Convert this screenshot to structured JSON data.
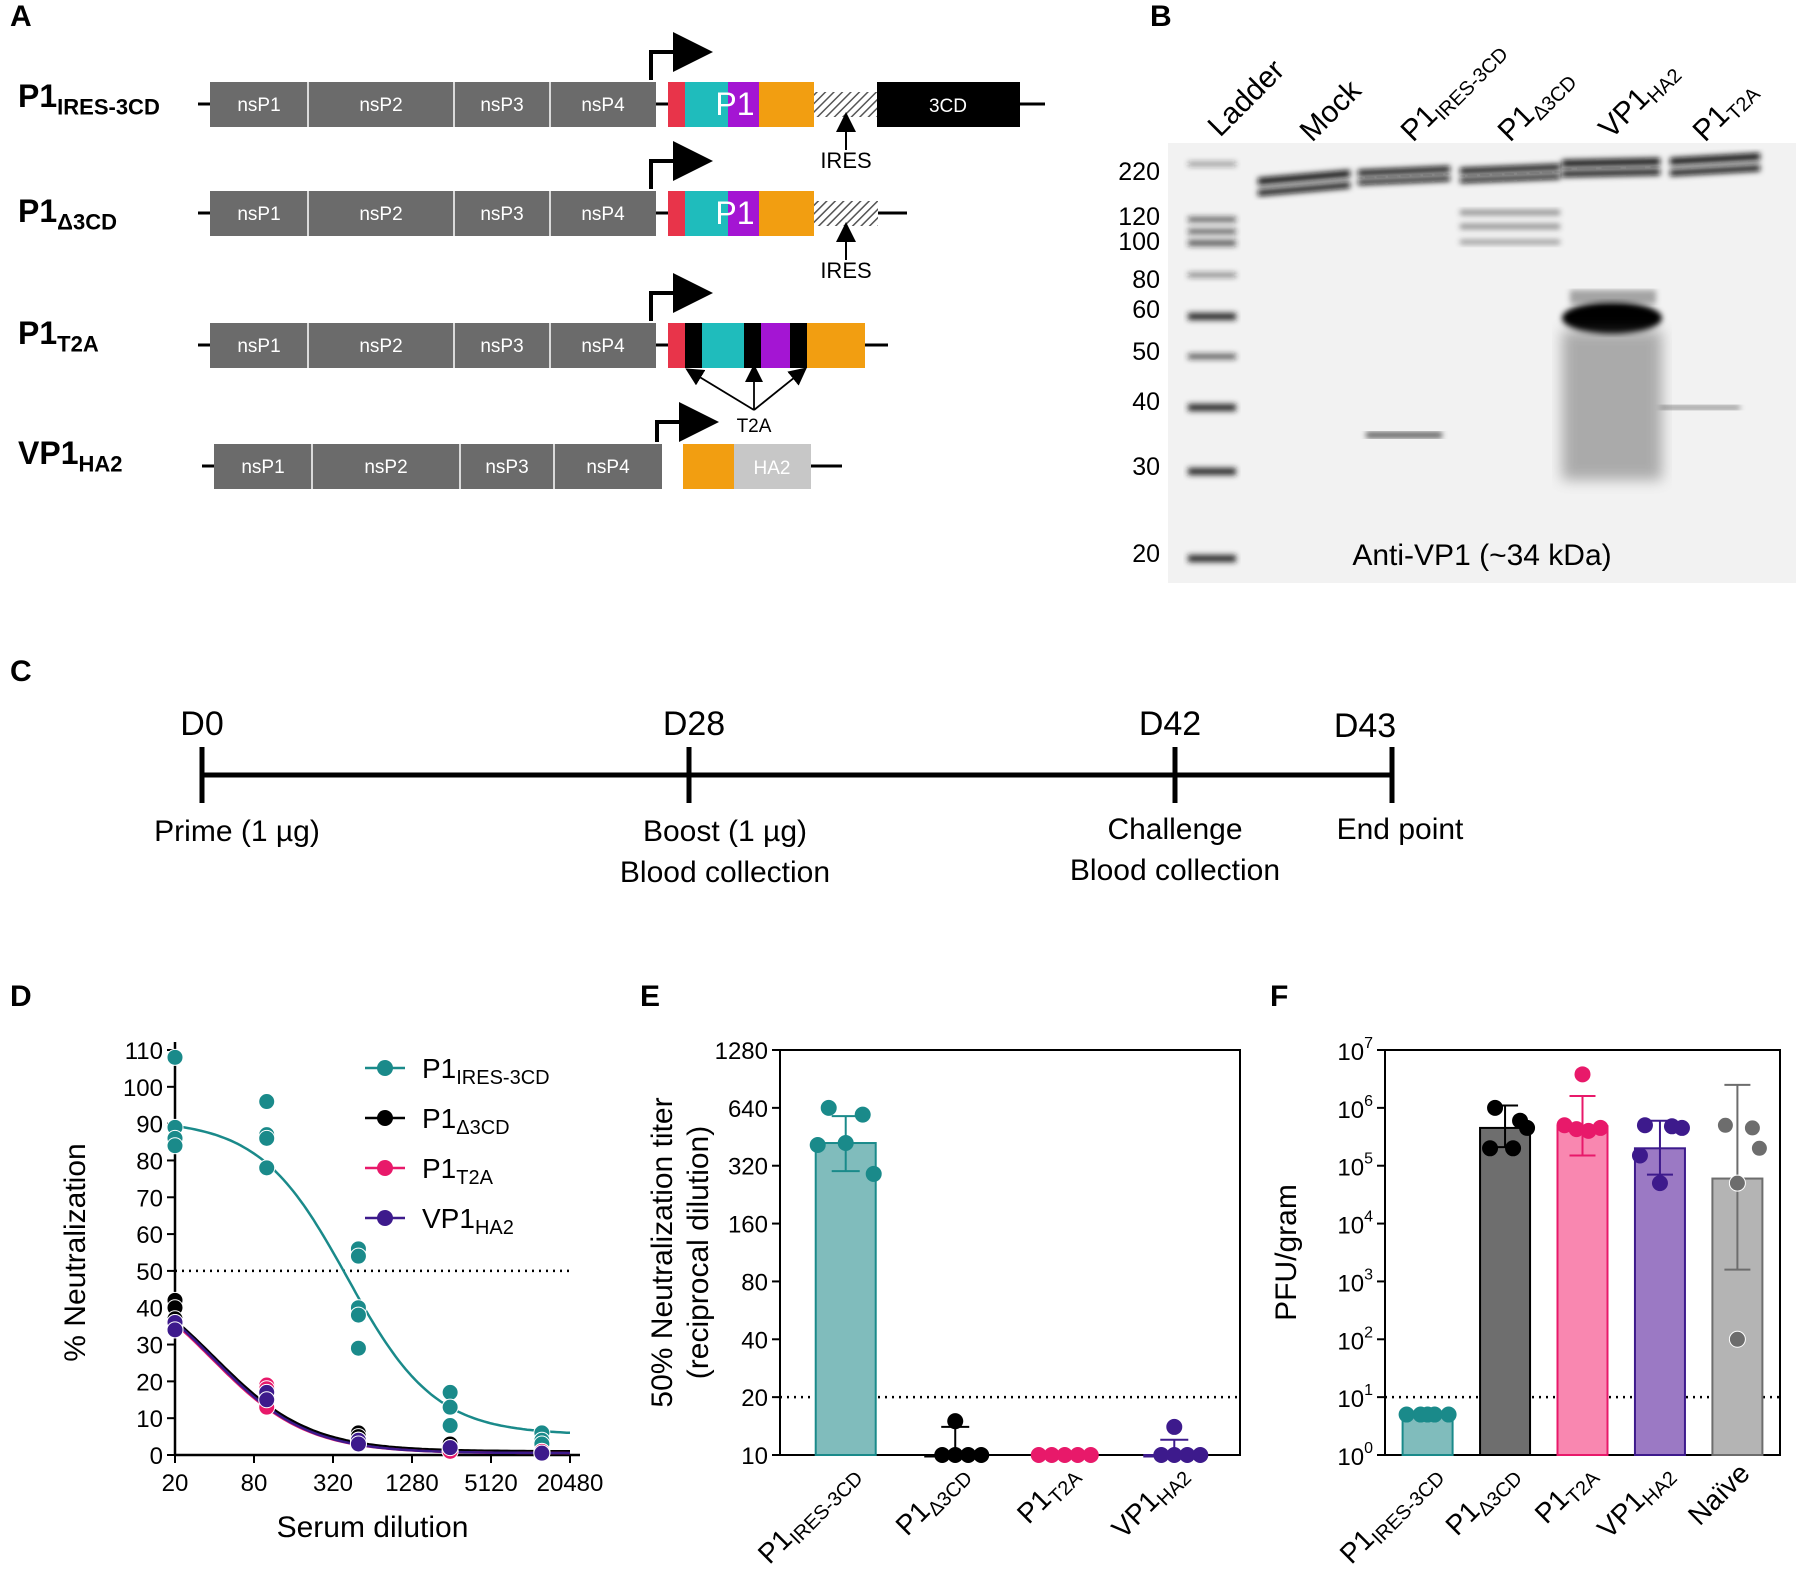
{
  "panels": {
    "A": "A",
    "B": "B",
    "C": "C",
    "D": "D",
    "E": "E",
    "F": "F"
  },
  "constructs": [
    {
      "main": "P1",
      "sub": "IRES-3CD",
      "segments": [
        "nsP1",
        "nsP2",
        "nsP3",
        "nsP4"
      ],
      "insert_label": "P1",
      "downstream": "3CD",
      "arrow_label": "IRES"
    },
    {
      "main": "P1",
      "sub": "Δ3CD",
      "segments": [
        "nsP1",
        "nsP2",
        "nsP3",
        "nsP4"
      ],
      "insert_label": "P1",
      "arrow_label": "IRES"
    },
    {
      "main": "P1",
      "sub": "T2A",
      "segments": [
        "nsP1",
        "nsP2",
        "nsP3",
        "nsP4"
      ],
      "arrow_label": "T2A"
    },
    {
      "main": "VP1",
      "sub": "HA2",
      "segments": [
        "nsP1",
        "nsP2",
        "nsP3",
        "nsP4"
      ],
      "tag_label": "HA2"
    }
  ],
  "blot": {
    "lanes": [
      {
        "main": "Ladder",
        "sub": ""
      },
      {
        "main": "Mock",
        "sub": ""
      },
      {
        "main": "P1",
        "sub": "IRES-3CD"
      },
      {
        "main": "P1",
        "sub": "Δ3CD"
      },
      {
        "main": "VP1",
        "sub": "HA2"
      },
      {
        "main": "P1",
        "sub": "T2A"
      }
    ],
    "markers": [
      "220",
      "120",
      "100",
      "80",
      "60",
      "50",
      "40",
      "30",
      "20"
    ],
    "caption": "Anti-VP1 (~34 kDa)"
  },
  "timeline": [
    {
      "day": "D0",
      "lines": [
        "Prime (1 µg)"
      ]
    },
    {
      "day": "D28",
      "lines": [
        "Boost (1 µg)",
        "Blood collection"
      ]
    },
    {
      "day": "D42",
      "lines": [
        "Challenge",
        "Blood collection"
      ]
    },
    {
      "day": "D43",
      "lines": [
        "End point"
      ]
    }
  ],
  "chart_data": [
    {
      "type": "scatter",
      "panel": "D",
      "xlabel": "Serum dilution",
      "ylabel": "% Neutralization",
      "x_scale": "log2",
      "x_ticks": [
        20,
        80,
        320,
        1280,
        5120,
        20480
      ],
      "y_ticks": [
        0,
        10,
        20,
        30,
        40,
        50,
        60,
        70,
        80,
        90,
        100,
        110
      ],
      "ylim": [
        0,
        110
      ],
      "threshold": 50,
      "legend_position": "top-right",
      "series": [
        {
          "name": "P1",
          "sub": "IRES-3CD",
          "color": "#1a8a8a",
          "points": [
            [
              20,
              108
            ],
            [
              20,
              89
            ],
            [
              20,
              86
            ],
            [
              20,
              84
            ],
            [
              100,
              96
            ],
            [
              100,
              87
            ],
            [
              100,
              86
            ],
            [
              100,
              78
            ],
            [
              500,
              56
            ],
            [
              500,
              54
            ],
            [
              500,
              40
            ],
            [
              500,
              38
            ],
            [
              500,
              29
            ],
            [
              2500,
              17
            ],
            [
              2500,
              13
            ],
            [
              2500,
              8
            ],
            [
              12500,
              6
            ],
            [
              12500,
              4
            ],
            [
              12500,
              3
            ]
          ],
          "fit_top": 91,
          "fit_bottom": 5.5,
          "fit_ic50": 410,
          "fit_hill": 1.3
        },
        {
          "name": "P1",
          "sub": "Δ3CD",
          "color": "#000000",
          "points": [
            [
              20,
              42
            ],
            [
              20,
              40
            ],
            [
              20,
              37
            ],
            [
              100,
              18
            ],
            [
              100,
              17
            ],
            [
              100,
              16
            ],
            [
              500,
              6
            ],
            [
              500,
              5
            ],
            [
              500,
              4
            ],
            [
              2500,
              3
            ],
            [
              2500,
              2
            ],
            [
              2500,
              1
            ],
            [
              12500,
              1
            ],
            [
              12500,
              0.5
            ]
          ],
          "fit_top": 52,
          "fit_bottom": 1,
          "fit_ic50": 40,
          "fit_hill": 1.2
        },
        {
          "name": "P1",
          "sub": "T2A",
          "color": "#e8196a",
          "points": [
            [
              20,
              36
            ],
            [
              20,
              35
            ],
            [
              20,
              34
            ],
            [
              100,
              19
            ],
            [
              100,
              18
            ],
            [
              100,
              13
            ],
            [
              500,
              4
            ],
            [
              500,
              3
            ],
            [
              2500,
              2
            ],
            [
              2500,
              1
            ],
            [
              12500,
              1
            ]
          ],
          "fit_top": 52,
          "fit_bottom": 0.5,
          "fit_ic50": 38,
          "fit_hill": 1.2
        },
        {
          "name": "VP1",
          "sub": "HA2",
          "color": "#3d1a8c",
          "points": [
            [
              20,
              36
            ],
            [
              20,
              34
            ],
            [
              100,
              17
            ],
            [
              100,
              15
            ],
            [
              500,
              4
            ],
            [
              500,
              3
            ],
            [
              2500,
              2
            ],
            [
              12500,
              0.5
            ]
          ],
          "fit_top": 52,
          "fit_bottom": 0.5,
          "fit_ic50": 39,
          "fit_hill": 1.2
        }
      ]
    },
    {
      "type": "bar",
      "panel": "E",
      "ylabel": [
        "50% Neutralization titer",
        "(reciprocal dilution)"
      ],
      "y_scale": "log2",
      "y_ticks": [
        10,
        20,
        40,
        80,
        160,
        320,
        640,
        1280
      ],
      "ylim": [
        10,
        1280
      ],
      "threshold": 20,
      "categories": [
        {
          "main": "P1",
          "sub": "IRES-3CD"
        },
        {
          "main": "P1",
          "sub": "Δ3CD"
        },
        {
          "main": "P1",
          "sub": "T2A"
        },
        {
          "main": "VP1",
          "sub": "HA2"
        }
      ],
      "values": [
        420,
        10,
        10,
        10
      ],
      "errors": [
        [
          300,
          580
        ],
        [
          10,
          14
        ],
        [
          10,
          10
        ],
        [
          10,
          12
        ]
      ],
      "points": [
        [
          640,
          590,
          420,
          410,
          290
        ],
        [
          15,
          10,
          10,
          10,
          10
        ],
        [
          10,
          10,
          10,
          10,
          10
        ],
        [
          14,
          10,
          10,
          10,
          10
        ]
      ],
      "colors": [
        "#1a8a8a",
        "#000000",
        "#e8196a",
        "#3d1a8c"
      ],
      "fills": [
        "#80bcbc",
        "#000000",
        "#e8196a",
        "#3d1a8c"
      ]
    },
    {
      "type": "bar",
      "panel": "F",
      "ylabel": "PFU/gram",
      "y_scale": "log10",
      "y_tick_exponents": [
        0,
        1,
        2,
        3,
        4,
        5,
        6,
        7
      ],
      "ylim": [
        1,
        10000000
      ],
      "threshold": 10,
      "categories": [
        {
          "main": "P1",
          "sub": "IRES-3CD"
        },
        {
          "main": "P1",
          "sub": "Δ3CD"
        },
        {
          "main": "P1",
          "sub": "T2A"
        },
        {
          "main": "VP1",
          "sub": "HA2"
        },
        {
          "main": "Naïve",
          "sub": ""
        }
      ],
      "values": [
        5,
        450000,
        480000,
        200000,
        60000
      ],
      "errors": [
        [
          5,
          5
        ],
        [
          210000,
          1100000
        ],
        [
          150000,
          1600000
        ],
        [
          70000,
          600000
        ],
        [
          1600,
          2500000
        ]
      ],
      "points": [
        [
          5,
          5,
          5,
          5,
          5
        ],
        [
          1000000,
          600000,
          450000,
          200000,
          200000
        ],
        [
          3800000,
          500000,
          450000,
          430000,
          400000
        ],
        [
          500000,
          480000,
          450000,
          150000,
          50000
        ],
        [
          500000,
          450000,
          200000,
          50000,
          100
        ]
      ],
      "colors": [
        "#1a8a8a",
        "#000000",
        "#e8196a",
        "#3d1a8c",
        "#6d6d6d"
      ],
      "fills": [
        "#80bcbc",
        "#6e6e6e",
        "#f987b0",
        "#9b79c4",
        "#b4b4b4"
      ]
    }
  ]
}
